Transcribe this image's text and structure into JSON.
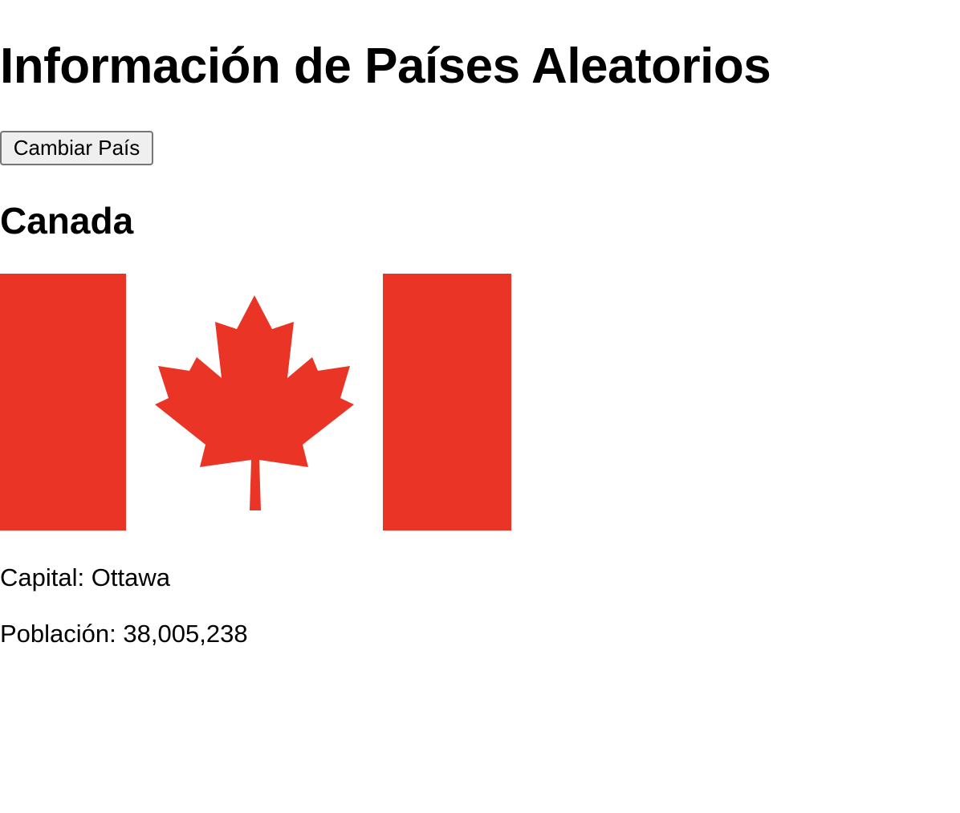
{
  "page": {
    "title": "Información de Países Aleatorios",
    "change_button_label": "Cambiar País"
  },
  "country": {
    "name": "Canada",
    "flag_icon": "canada-flag-icon",
    "capital_label": "Capital:",
    "capital": "Ottawa",
    "population_label": "Población:",
    "population": "38,005,238"
  },
  "colors": {
    "flag_red": "#E93426",
    "flag_white": "#FFFFFF",
    "button_bg": "#EFEFEF",
    "button_border": "#767676",
    "text": "#000000"
  }
}
